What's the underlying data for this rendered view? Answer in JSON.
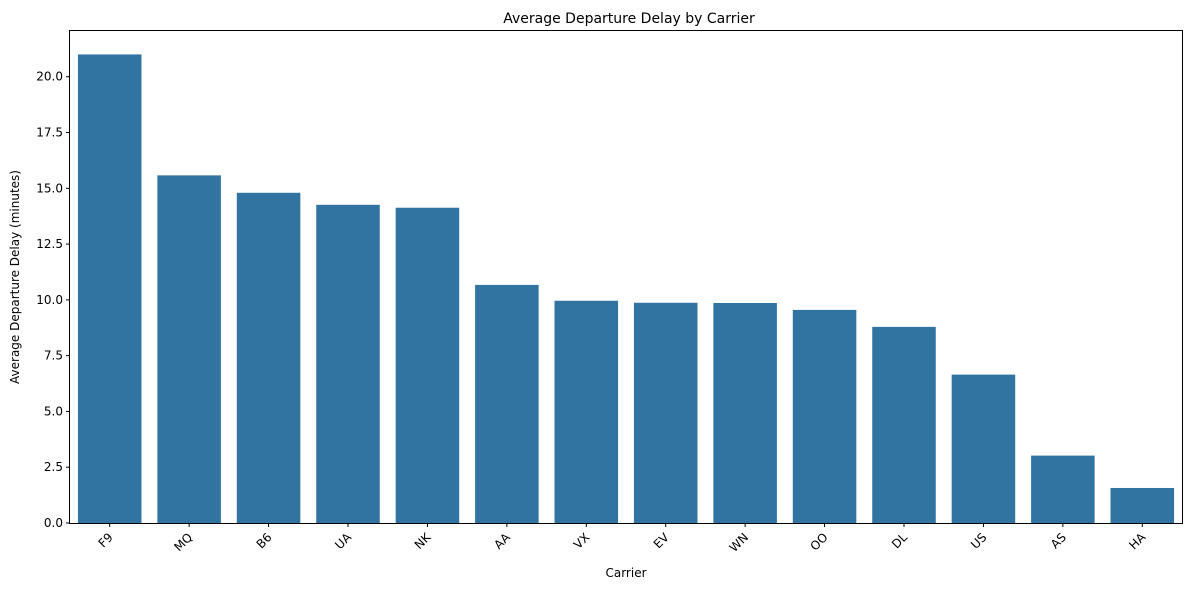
{
  "chart_data": {
    "type": "bar",
    "title": "Average Departure Delay by Carrier",
    "xlabel": "Carrier",
    "ylabel": "Average Departure Delay (minutes)",
    "categories": [
      "F9",
      "MQ",
      "B6",
      "UA",
      "NK",
      "AA",
      "VX",
      "EV",
      "WN",
      "OO",
      "DL",
      "US",
      "AS",
      "HA"
    ],
    "values": [
      21.0,
      15.58,
      14.8,
      14.26,
      14.13,
      10.67,
      9.96,
      9.87,
      9.86,
      9.55,
      8.79,
      6.65,
      3.02,
      1.57
    ],
    "ylim": [
      0,
      22.05
    ],
    "yticks": [
      0.0,
      2.5,
      5.0,
      7.5,
      10.0,
      12.5,
      15.0,
      17.5,
      20.0
    ],
    "ytick_labels": [
      "0.0",
      "2.5",
      "5.0",
      "7.5",
      "10.0",
      "12.5",
      "15.0",
      "17.5",
      "20.0"
    ],
    "bar_color": "#3274a1",
    "grid": false,
    "legend": "none"
  }
}
